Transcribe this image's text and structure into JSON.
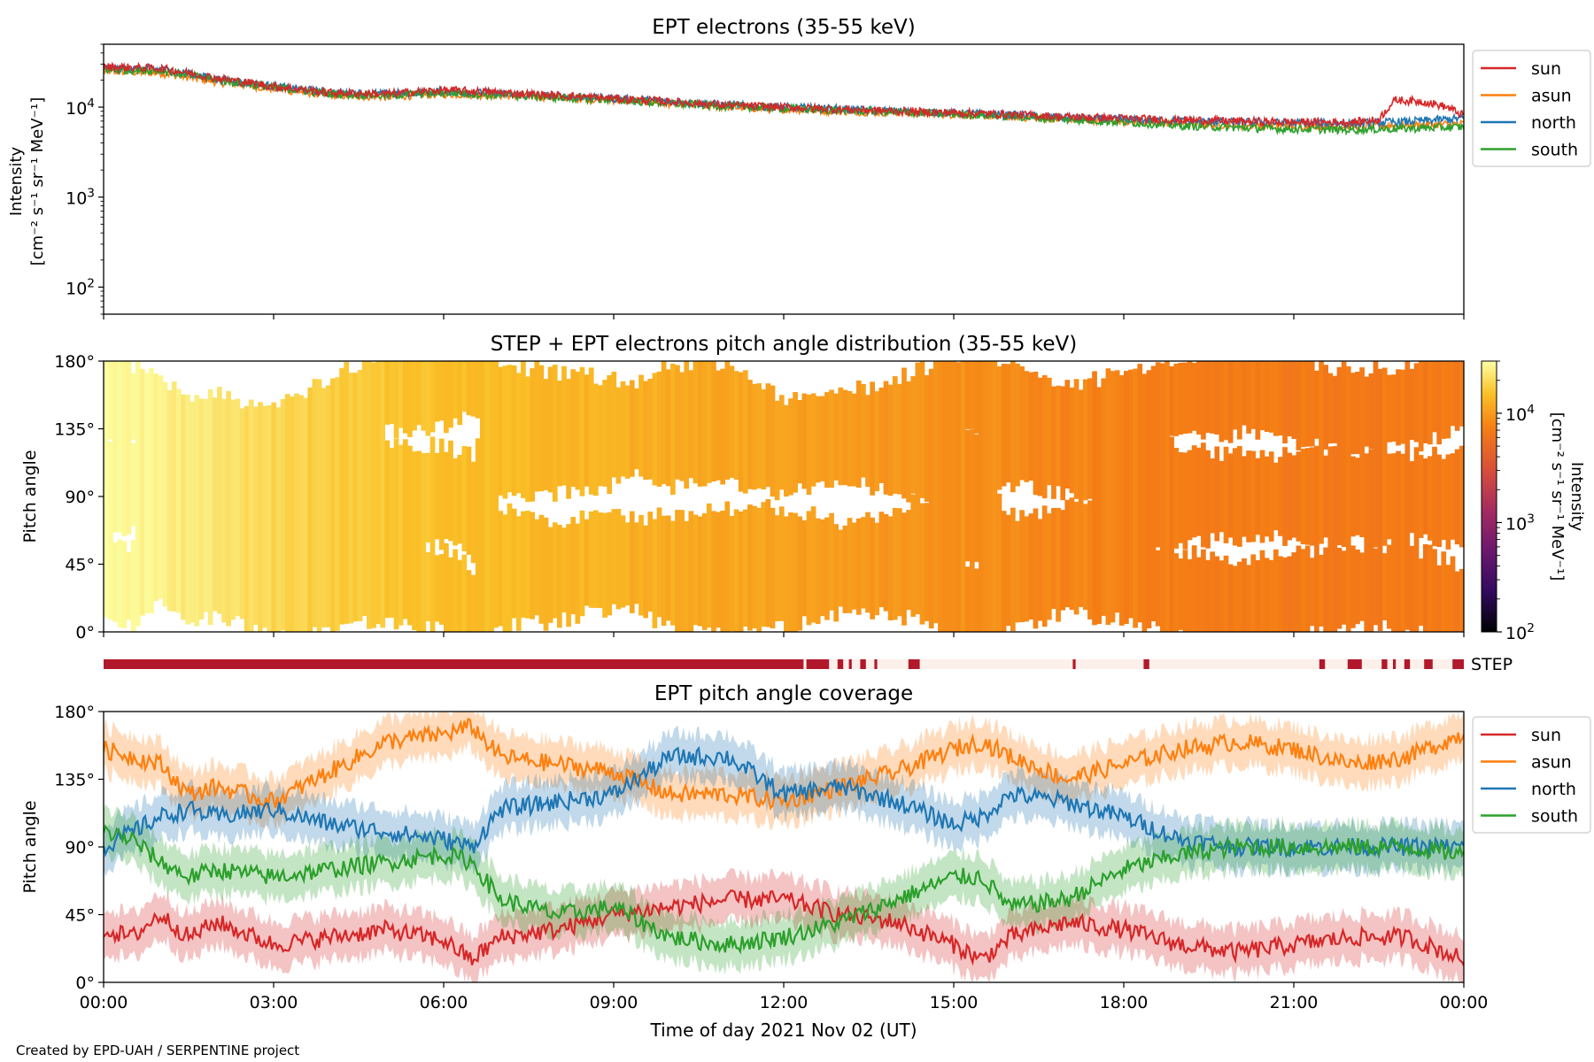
{
  "footer": {
    "credit": "Created by EPD-UAH / SERPENTINE project"
  },
  "colors": {
    "sun": "#d62728",
    "asun": "#ff7f0e",
    "north": "#1f77b4",
    "south": "#2ca02c",
    "step_on": "#b2182b",
    "step_off": "#fdf0ea"
  },
  "chart_data": [
    {
      "type": "line",
      "title": "EPT electrons (35-55 keV)",
      "ylabel": [
        "Intensity",
        "[cm⁻² s⁻¹ sr⁻¹ MeV⁻¹]"
      ],
      "yscale": "log",
      "ylim": [
        50,
        50000
      ],
      "yticks": [
        {
          "value": 100,
          "base": "10",
          "exp": "2"
        },
        {
          "value": 1000,
          "base": "10",
          "exp": "3"
        },
        {
          "value": 10000,
          "base": "10",
          "exp": "4"
        }
      ],
      "legend": {
        "placement": "outside-right",
        "entries": [
          "sun",
          "asun",
          "north",
          "south"
        ]
      },
      "series": [
        {
          "name": "sun",
          "x": [
            0,
            1,
            2,
            3,
            4,
            5,
            6,
            7,
            8,
            9,
            10,
            11,
            12,
            13,
            14,
            15,
            16,
            17,
            18,
            19,
            20,
            21,
            22,
            22.5,
            22.8,
            23.3,
            23.7,
            24
          ],
          "y": [
            28000,
            27000,
            21000,
            17000,
            14500,
            14000,
            15500,
            14500,
            13500,
            12500,
            11500,
            10500,
            10000,
            9500,
            9000,
            8700,
            8300,
            7800,
            7500,
            7200,
            7000,
            6800,
            6800,
            7200,
            12000,
            11500,
            10000,
            8000
          ]
        },
        {
          "name": "asun",
          "x": [
            0,
            1,
            2,
            3,
            4,
            5,
            6,
            7,
            8,
            9,
            10,
            11,
            12,
            13,
            14,
            15,
            16,
            17,
            18,
            19,
            20,
            21,
            22,
            23,
            24
          ],
          "y": [
            25000,
            24000,
            19000,
            16000,
            13500,
            13000,
            14000,
            13500,
            12800,
            12000,
            11000,
            10000,
            9500,
            9000,
            8700,
            8300,
            7800,
            7300,
            7000,
            6600,
            6300,
            6200,
            6100,
            6300,
            6500
          ]
        },
        {
          "name": "north",
          "x": [
            0,
            1,
            2,
            3,
            4,
            5,
            6,
            7,
            8,
            9,
            10,
            11,
            12,
            13,
            14,
            15,
            16,
            17,
            18,
            19,
            20,
            21,
            22,
            23,
            24
          ],
          "y": [
            27000,
            26500,
            20500,
            17000,
            14500,
            14000,
            15000,
            14000,
            13200,
            12500,
            11500,
            10500,
            10000,
            9500,
            9000,
            8600,
            8200,
            7600,
            7300,
            7000,
            6800,
            6700,
            6600,
            6900,
            7500
          ]
        },
        {
          "name": "south",
          "x": [
            0,
            1,
            2,
            3,
            4,
            5,
            6,
            7,
            8,
            9,
            10,
            11,
            12,
            13,
            14,
            15,
            16,
            17,
            18,
            19,
            20,
            21,
            22,
            23,
            24
          ],
          "y": [
            26000,
            25500,
            20000,
            16500,
            14000,
            13500,
            14500,
            13500,
            12800,
            12000,
            11000,
            10200,
            9700,
            9200,
            8800,
            8400,
            7900,
            7300,
            6800,
            6200,
            5900,
            5700,
            5600,
            5800,
            6000
          ]
        }
      ]
    },
    {
      "type": "heatmap",
      "title": "STEP + EPT electrons pitch angle distribution (35-55 keV)",
      "ylabel": "Pitch angle",
      "ylim": [
        0,
        180
      ],
      "yticks": [
        "0°",
        "45°",
        "90°",
        "135°",
        "180°"
      ],
      "colorbar": {
        "label": [
          "Intensity",
          "[cm⁻² s⁻¹ sr⁻¹ MeV⁻¹]"
        ],
        "scale": "log",
        "range": [
          100,
          30000
        ],
        "ticks": [
          {
            "value": 100,
            "base": "10",
            "exp": "2"
          },
          {
            "value": 1000,
            "base": "10",
            "exp": "3"
          },
          {
            "value": 10000,
            "base": "10",
            "exp": "4"
          }
        ],
        "colormap": "inferno"
      },
      "intensity_trend": {
        "x": [
          0,
          2,
          4,
          6,
          8,
          10,
          12,
          14,
          16,
          18,
          20,
          22,
          24
        ],
        "y": [
          30000,
          22000,
          17000,
          15000,
          13500,
          12000,
          10500,
          9500,
          8500,
          7500,
          7000,
          6800,
          6800
        ]
      }
    },
    {
      "type": "bar",
      "label": "STEP",
      "available_intervals_hours": [
        [
          0,
          12.35
        ],
        [
          12.4,
          12.8
        ],
        [
          12.95,
          13.05
        ],
        [
          13.15,
          13.2
        ],
        [
          13.35,
          13.45
        ],
        [
          13.6,
          13.65
        ],
        [
          14.2,
          14.4
        ],
        [
          17.1,
          17.15
        ],
        [
          18.35,
          18.45
        ],
        [
          21.45,
          21.55
        ],
        [
          21.95,
          22.2
        ],
        [
          22.55,
          22.65
        ],
        [
          22.75,
          22.8
        ],
        [
          22.95,
          23.05
        ],
        [
          23.3,
          23.45
        ],
        [
          23.8,
          24
        ]
      ]
    },
    {
      "type": "line",
      "title": "EPT pitch angle coverage",
      "ylabel": "Pitch angle",
      "xlabel": "Time of day 2021 Nov 02 (UT)",
      "ylim": [
        0,
        180
      ],
      "yticks": [
        "0°",
        "45°",
        "90°",
        "135°",
        "180°"
      ],
      "xticks": [
        "00:00",
        "03:00",
        "06:00",
        "09:00",
        "12:00",
        "15:00",
        "18:00",
        "21:00",
        "00:00"
      ],
      "xlim_hours": [
        0,
        24
      ],
      "legend": {
        "placement": "outside-right",
        "entries": [
          "sun",
          "asun",
          "north",
          "south"
        ]
      },
      "series": [
        {
          "name": "sun",
          "x": [
            0,
            0.5,
            1,
            1.5,
            2,
            3,
            4,
            5,
            6,
            6.5,
            7,
            8,
            9,
            10,
            11,
            12,
            13,
            14,
            15,
            15.5,
            16,
            17,
            18,
            19,
            20,
            21,
            22,
            23,
            24
          ],
          "y": [
            35,
            30,
            45,
            30,
            40,
            25,
            30,
            35,
            28,
            15,
            30,
            35,
            45,
            50,
            55,
            55,
            45,
            40,
            25,
            15,
            30,
            40,
            35,
            25,
            20,
            25,
            30,
            30,
            15
          ]
        },
        {
          "name": "asun",
          "x": [
            0,
            0.5,
            1,
            1.5,
            2,
            3,
            4,
            5,
            6,
            6.5,
            7,
            8,
            9,
            10,
            11,
            12,
            13,
            14,
            15,
            15.5,
            16,
            17,
            18,
            19,
            20,
            21,
            22,
            23,
            24
          ],
          "y": [
            155,
            150,
            145,
            125,
            130,
            120,
            140,
            160,
            165,
            170,
            150,
            145,
            140,
            125,
            125,
            120,
            130,
            140,
            155,
            160,
            150,
            135,
            145,
            155,
            160,
            155,
            145,
            150,
            165
          ]
        },
        {
          "name": "north",
          "x": [
            0,
            0.5,
            1,
            1.5,
            2,
            3,
            4,
            5,
            6,
            6.5,
            7,
            8,
            9,
            10,
            11,
            12,
            13,
            14,
            15,
            15.5,
            16,
            17,
            18,
            19,
            20,
            21,
            22,
            23,
            24
          ],
          "y": [
            90,
            100,
            110,
            115,
            110,
            115,
            105,
            100,
            95,
            90,
            115,
            120,
            125,
            150,
            150,
            125,
            130,
            120,
            105,
            110,
            125,
            120,
            110,
            95,
            90,
            90,
            90,
            90,
            90
          ]
        },
        {
          "name": "south",
          "x": [
            0,
            0.5,
            1,
            1.5,
            2,
            3,
            4,
            5,
            6,
            6.5,
            7,
            8,
            9,
            10,
            11,
            12,
            13,
            14,
            15,
            15.5,
            16,
            17,
            18,
            19,
            20,
            21,
            22,
            23,
            24
          ],
          "y": [
            100,
            95,
            80,
            70,
            75,
            70,
            75,
            80,
            85,
            80,
            55,
            45,
            50,
            30,
            25,
            30,
            40,
            55,
            70,
            70,
            50,
            55,
            75,
            85,
            90,
            90,
            90,
            90,
            85
          ]
        }
      ],
      "band_halfwidth_deg": 15
    }
  ]
}
